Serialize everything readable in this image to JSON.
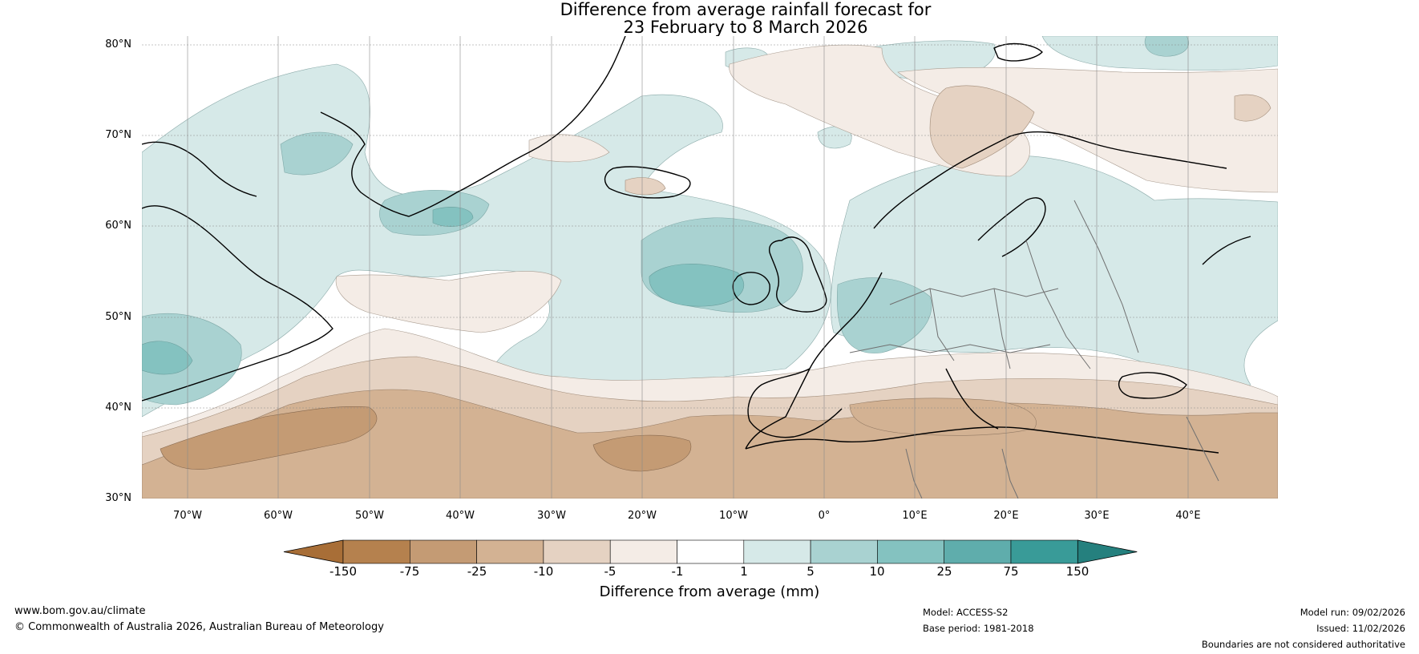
{
  "title": {
    "line1": "Difference from average rainfall forecast for",
    "line2": "23 February to 8 March 2026"
  },
  "map": {
    "latitude_labels": [
      "80°N",
      "70°N",
      "60°N",
      "50°N",
      "40°N",
      "30°N"
    ],
    "longitude_labels": [
      "70°W",
      "60°W",
      "50°W",
      "40°W",
      "30°W",
      "20°W",
      "10°W",
      "0°",
      "10°E",
      "20°E",
      "30°E",
      "40°E"
    ],
    "region": "North Atlantic and Europe"
  },
  "colorbar": {
    "label": "Difference from average (mm)",
    "tick_labels": [
      "-150",
      "-75",
      "-25",
      "-10",
      "-5",
      "-1",
      "1",
      "5",
      "10",
      "25",
      "75",
      "150"
    ],
    "colors": [
      "#a86e37",
      "#b5814e",
      "#c49b74",
      "#d3b293",
      "#e5d2c2",
      "#f4ece6",
      "#ffffff",
      "#d6e9e8",
      "#a9d2d1",
      "#84c2c0",
      "#5fadac",
      "#399b98",
      "#25807e"
    ]
  },
  "footer": {
    "website": "www.bom.gov.au/climate",
    "copyright": "© Commonwealth of Australia 2026, Australian Bureau of Meteorology",
    "model": "Model: ACCESS-S2",
    "base_period": "Base period: 1981-2018",
    "model_run": "Model run: 09/02/2026",
    "issued": "Issued: 11/02/2026",
    "disclaimer": "Boundaries are not considered authoritative"
  }
}
